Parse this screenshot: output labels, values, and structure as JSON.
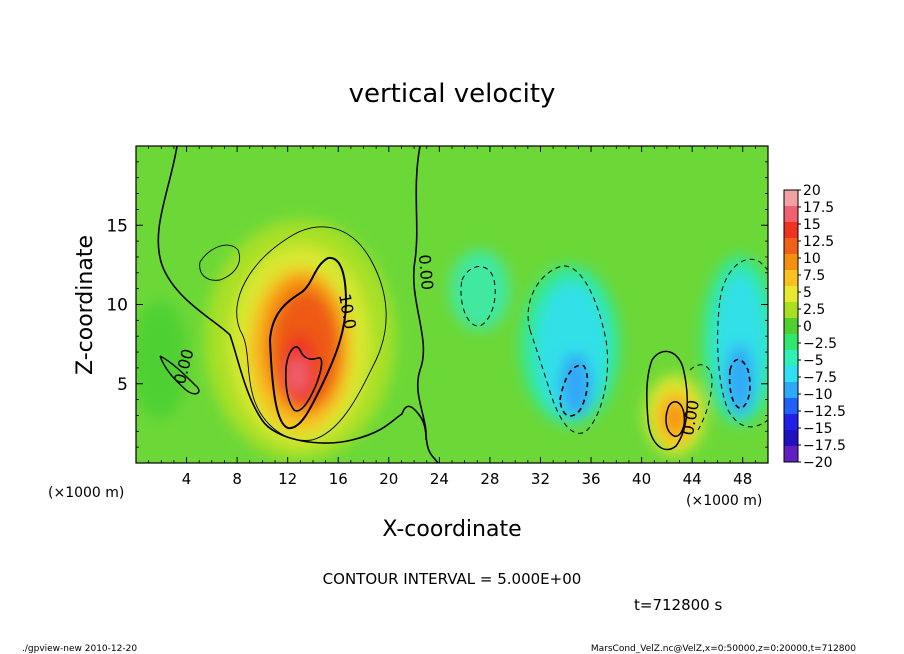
{
  "chart_data": {
    "type": "heatmap",
    "title": "vertical velocity",
    "xlabel": "X-coordinate",
    "ylabel": "Z-coordinate",
    "x_unit": "(×1000 m)",
    "y_unit": "(×1000 m)",
    "xlim": [
      0,
      50
    ],
    "ylim": [
      0,
      20
    ],
    "x_ticks": [
      4,
      8,
      12,
      16,
      20,
      24,
      28,
      32,
      36,
      40,
      44,
      48
    ],
    "y_ticks": [
      5,
      10,
      15
    ],
    "contour_interval_text": "CONTOUR INTERVAL = 5.000E+00",
    "time_text": "t=712800 s",
    "contour_labels": [
      {
        "text": "0.00",
        "x": 4.2,
        "y": 6.0,
        "rotation": -75
      },
      {
        "text": "10.0",
        "x": 16.3,
        "y": 9.5,
        "rotation": 80
      },
      {
        "text": "0.00",
        "x": 22.5,
        "y": 12.0,
        "rotation": 85
      },
      {
        "text": "0.00",
        "x": 44.3,
        "y": 2.8,
        "rotation": -80
      }
    ],
    "colorbar": {
      "levels": [
        "20",
        "17.5",
        "15",
        "12.5",
        "10",
        "7.5",
        "5",
        "2.5",
        "0",
        "−2.5",
        "−5",
        "−7.5",
        "−10",
        "−12.5",
        "−15",
        "−17.5",
        "−20"
      ],
      "colors": [
        "#f4a0a4",
        "#f06070",
        "#ee3322",
        "#f06018",
        "#f49010",
        "#f8c020",
        "#e8e830",
        "#a8e020",
        "#50d030",
        "#30e870",
        "#30f0b8",
        "#30e0f0",
        "#30a8f8",
        "#2060f8",
        "#2020e8",
        "#2010c0",
        "#6020c0"
      ]
    },
    "features": [
      {
        "name": "updraft",
        "x": 13.0,
        "z": 6.5,
        "peak": 17.5
      },
      {
        "name": "updraft",
        "x": 42.5,
        "z": 3.0,
        "peak": 10.0
      },
      {
        "name": "downdraft",
        "x": 35.0,
        "z": 6.0,
        "peak": -10.0
      },
      {
        "name": "downdraft",
        "x": 47.5,
        "z": 7.0,
        "peak": -10.0
      }
    ]
  },
  "footer": {
    "left": "./gpview-new   2010-12-20",
    "right": "MarsCond_VelZ.nc@VelZ,x=0:50000,z=0:20000,t=712800"
  }
}
